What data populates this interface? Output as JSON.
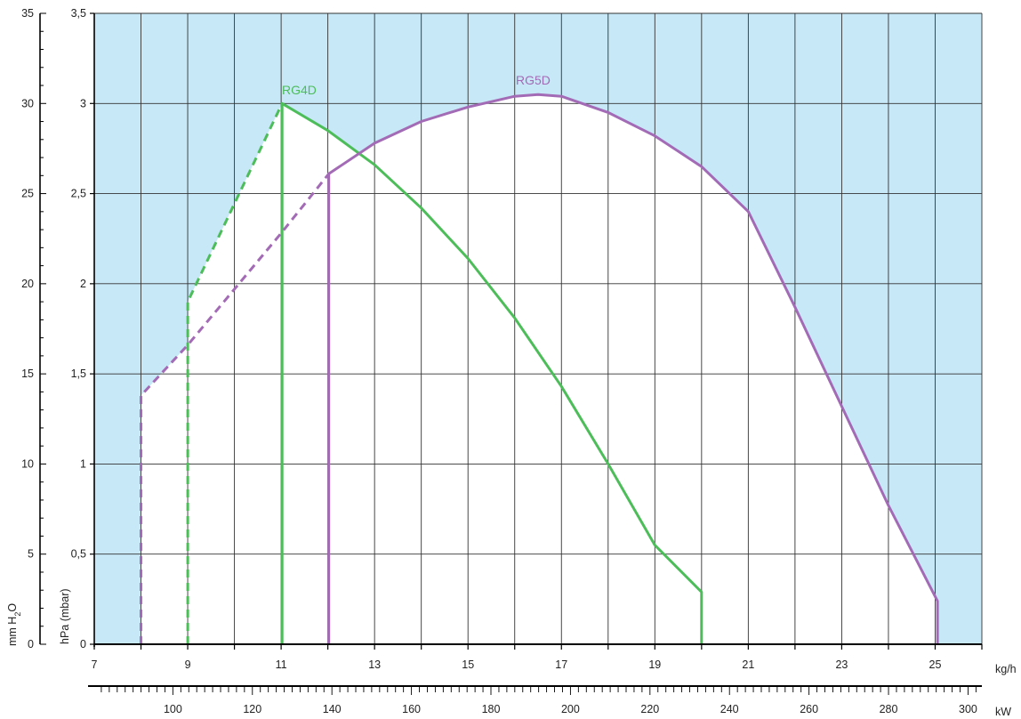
{
  "colors": {
    "background_fill": "#c6e8f7",
    "grid": "#333333",
    "rg4d": "#4dbd5a",
    "rg5d": "#a36bb5"
  },
  "chart_data": {
    "type": "line",
    "title": "",
    "x_axis_primary": {
      "unit": "kg/h",
      "range": [
        7,
        26
      ],
      "tick_labels": [
        "7",
        "9",
        "11",
        "13",
        "15",
        "17",
        "19",
        "21",
        "23",
        "25"
      ],
      "tick_values": [
        7,
        9,
        11,
        13,
        15,
        17,
        19,
        21,
        23,
        25
      ]
    },
    "x_axis_secondary": {
      "unit": "kW",
      "tick_labels": [
        "100",
        "120",
        "140",
        "160",
        "180",
        "200",
        "220",
        "240",
        "260",
        "280",
        "300"
      ],
      "tick_values": [
        100,
        120,
        140,
        160,
        180,
        200,
        220,
        240,
        260,
        280,
        300
      ]
    },
    "y_axis_primary": {
      "label": "hPa (mbar)",
      "range": [
        0,
        3.5
      ],
      "tick_labels": [
        "0",
        "0,5",
        "1",
        "1,5",
        "2",
        "2,5",
        "3",
        "3,5"
      ],
      "tick_values": [
        0,
        0.5,
        1,
        1.5,
        2,
        2.5,
        3,
        3.5
      ]
    },
    "y_axis_secondary": {
      "label_parts": [
        "mm H",
        "2",
        "O"
      ],
      "range": [
        0,
        35
      ],
      "tick_labels": [
        "0",
        "5",
        "10",
        "15",
        "20",
        "25",
        "30",
        "35"
      ],
      "tick_values": [
        0,
        5,
        10,
        15,
        20,
        25,
        30,
        35
      ]
    },
    "grid": true,
    "series": [
      {
        "name": "RG4D",
        "color": "#4dbd5a",
        "dashed_points": [
          [
            9,
            0
          ],
          [
            9,
            1.9
          ],
          [
            11.02,
            3.0
          ]
        ],
        "solid_points": [
          [
            11.02,
            0
          ],
          [
            11.02,
            3.0
          ],
          [
            12,
            2.85
          ],
          [
            13,
            2.66
          ],
          [
            14,
            2.42
          ],
          [
            15,
            2.14
          ],
          [
            16,
            1.81
          ],
          [
            17,
            1.43
          ],
          [
            18,
            1.0
          ],
          [
            19,
            0.55
          ],
          [
            20,
            0.29
          ],
          [
            20,
            0
          ]
        ]
      },
      {
        "name": "RG5D",
        "color": "#a36bb5",
        "dashed_points": [
          [
            8,
            0
          ],
          [
            8,
            1.38
          ],
          [
            9,
            1.66
          ],
          [
            10,
            1.97
          ],
          [
            11,
            2.28
          ],
          [
            12.02,
            2.61
          ]
        ],
        "solid_points": [
          [
            12.02,
            0
          ],
          [
            12.02,
            2.61
          ],
          [
            13,
            2.78
          ],
          [
            14,
            2.9
          ],
          [
            15,
            2.98
          ],
          [
            16,
            3.04
          ],
          [
            16.5,
            3.05
          ],
          [
            17,
            3.04
          ],
          [
            18,
            2.95
          ],
          [
            19,
            2.82
          ],
          [
            20,
            2.65
          ],
          [
            21,
            2.4
          ],
          [
            22,
            1.87
          ],
          [
            23,
            1.32
          ],
          [
            24,
            0.77
          ],
          [
            25.05,
            0.24
          ],
          [
            25.05,
            0
          ]
        ]
      }
    ]
  }
}
